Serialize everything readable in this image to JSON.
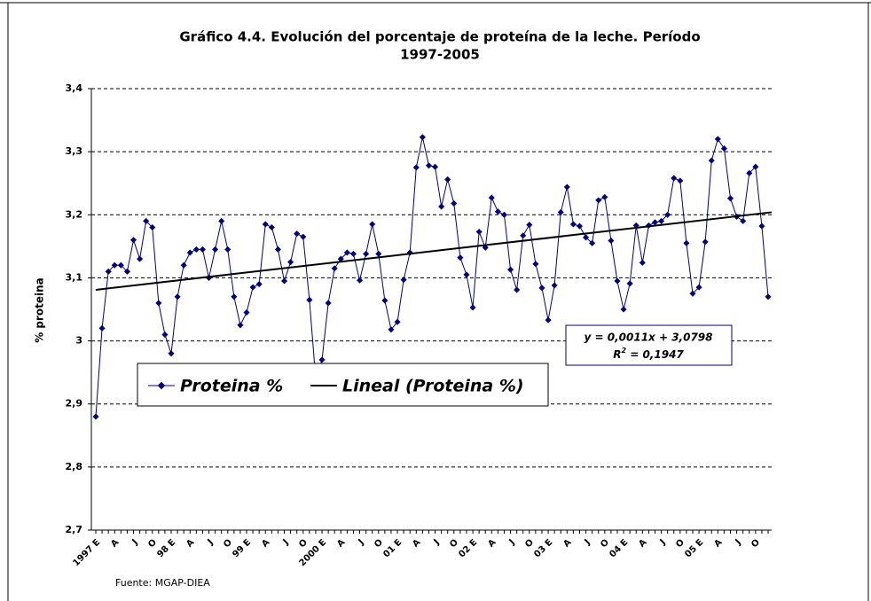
{
  "chart_data": {
    "type": "line",
    "title": [
      "Gráfico 4.4. Evolución del porcentaje de proteína de la leche. Período",
      "1997-2005"
    ],
    "ylabel": "% proteina",
    "source": "Fuente: MGAP-DIEA",
    "categories": [
      "1997 E",
      null,
      null,
      "A",
      null,
      null,
      "J",
      null,
      null,
      "O",
      null,
      null,
      "98 E",
      null,
      null,
      "A",
      null,
      null,
      "J",
      null,
      null,
      "O",
      null,
      null,
      "99 E",
      null,
      null,
      "A",
      null,
      null,
      "J",
      null,
      null,
      "O",
      null,
      null,
      "2000 E",
      null,
      null,
      "A",
      null,
      null,
      "J",
      null,
      null,
      "O",
      null,
      null,
      "01 E",
      null,
      null,
      "A",
      null,
      null,
      "J",
      null,
      null,
      "O",
      null,
      null,
      "02 E",
      null,
      null,
      "A",
      null,
      null,
      "J",
      null,
      null,
      "O",
      null,
      null,
      "03 E",
      null,
      null,
      "A",
      null,
      null,
      "J",
      null,
      null,
      "O",
      null,
      null,
      "04 E",
      null,
      null,
      "A",
      null,
      null,
      "J",
      null,
      null,
      "O",
      null,
      null,
      "05 E",
      null,
      null,
      "A",
      null,
      null,
      "J",
      null,
      null,
      "O",
      null,
      null
    ],
    "series": [
      {
        "name": "Proteina %",
        "color": "#000080",
        "values": [
          2.88,
          3.02,
          3.11,
          3.12,
          3.12,
          3.11,
          3.16,
          3.13,
          3.19,
          3.18,
          3.06,
          3.01,
          2.98,
          3.07,
          3.12,
          3.14,
          3.145,
          3.145,
          3.1,
          3.145,
          3.19,
          3.145,
          3.07,
          3.025,
          3.045,
          3.085,
          3.09,
          3.185,
          3.18,
          3.145,
          3.095,
          3.125,
          3.17,
          3.165,
          3.065,
          2.94,
          2.97,
          3.06,
          3.115,
          3.13,
          3.14,
          3.138,
          3.096,
          3.138,
          3.185,
          3.138,
          3.064,
          3.018,
          3.03,
          3.097,
          3.14,
          3.275,
          3.323,
          3.278,
          3.276,
          3.213,
          3.256,
          3.218,
          3.132,
          3.105,
          3.053,
          3.173,
          3.148,
          3.227,
          3.205,
          3.2,
          3.113,
          3.081,
          3.167,
          3.184,
          3.122,
          3.084,
          3.033,
          3.088,
          3.204,
          3.244,
          3.185,
          3.182,
          3.164,
          3.155,
          3.223,
          3.228,
          3.159,
          3.095,
          3.05,
          3.091,
          3.183,
          3.124,
          3.183,
          3.188,
          3.19,
          3.2,
          3.258,
          3.254,
          3.155,
          3.075,
          3.085,
          3.157,
          3.286,
          3.32,
          3.305,
          3.226,
          3.197,
          3.19,
          3.266,
          3.276,
          3.182,
          3.07
        ]
      }
    ],
    "trendline": {
      "name": "Lineal (Proteina %)",
      "color": "#000000",
      "values": [
        3.081,
        3.204
      ]
    },
    "equation": {
      "line1": "y = 0,0011x + 3,0798",
      "r": "R",
      "sup": "2",
      "rest": " = 0,1947"
    },
    "ylim": [
      2.7,
      3.4
    ],
    "yticks": [
      {
        "value": 2.7,
        "label": "2,7"
      },
      {
        "value": 2.8,
        "label": "2,8"
      },
      {
        "value": 2.9,
        "label": "2,9"
      },
      {
        "value": 3,
        "label": "3"
      },
      {
        "value": 3.1,
        "label": "3,1"
      },
      {
        "value": 3.2,
        "label": "3,2"
      },
      {
        "value": 3.3,
        "label": "3,3"
      },
      {
        "value": 3.4,
        "label": "3,4"
      }
    ],
    "grid": true
  }
}
